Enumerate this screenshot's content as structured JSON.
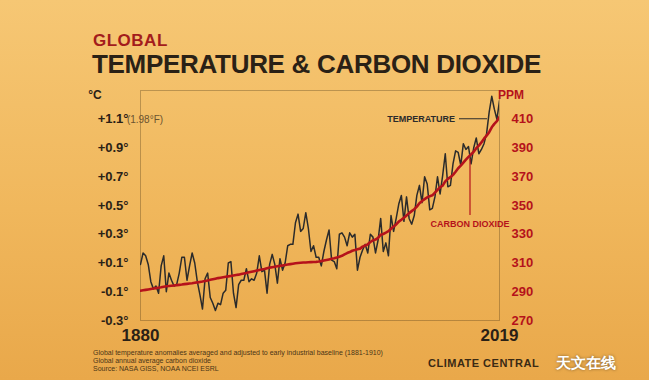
{
  "chart_data": {
    "type": "line",
    "subtitle": "GLOBAL",
    "title": "TEMPERATURE & CARBON DIOXIDE",
    "y_label": "°C",
    "y2_label": "PPM",
    "x": [
      1880,
      1881,
      1882,
      1883,
      1884,
      1885,
      1886,
      1887,
      1888,
      1889,
      1890,
      1891,
      1892,
      1893,
      1894,
      1895,
      1896,
      1897,
      1898,
      1899,
      1900,
      1901,
      1902,
      1903,
      1904,
      1905,
      1906,
      1907,
      1908,
      1909,
      1910,
      1911,
      1912,
      1913,
      1914,
      1915,
      1916,
      1917,
      1918,
      1919,
      1920,
      1921,
      1922,
      1923,
      1924,
      1925,
      1926,
      1927,
      1928,
      1929,
      1930,
      1931,
      1932,
      1933,
      1934,
      1935,
      1936,
      1937,
      1938,
      1939,
      1940,
      1941,
      1942,
      1943,
      1944,
      1945,
      1946,
      1947,
      1948,
      1949,
      1950,
      1951,
      1952,
      1953,
      1954,
      1955,
      1956,
      1957,
      1958,
      1959,
      1960,
      1961,
      1962,
      1963,
      1964,
      1965,
      1966,
      1967,
      1968,
      1969,
      1970,
      1971,
      1972,
      1973,
      1974,
      1975,
      1976,
      1977,
      1978,
      1979,
      1980,
      1981,
      1982,
      1983,
      1984,
      1985,
      1986,
      1987,
      1988,
      1989,
      1990,
      1991,
      1992,
      1993,
      1994,
      1995,
      1996,
      1997,
      1998,
      1999,
      2000,
      2001,
      2002,
      2003,
      2004,
      2005,
      2006,
      2007,
      2008,
      2009,
      2010,
      2011,
      2012,
      2013,
      2014,
      2015,
      2016,
      2017,
      2018,
      2019
    ],
    "xlim": [
      1880,
      2019
    ],
    "xticks": [
      1880,
      2019
    ],
    "ylim": [
      -0.3,
      1.3
    ],
    "yticks": [
      {
        "value": -0.3,
        "label": "-0.3°"
      },
      {
        "value": -0.1,
        "label": "-0.1°"
      },
      {
        "value": 0.1,
        "label": "+0.1°"
      },
      {
        "value": 0.3,
        "label": "+0.3°"
      },
      {
        "value": 0.5,
        "label": "+0.5°"
      },
      {
        "value": 0.7,
        "label": "+0.7°"
      },
      {
        "value": 0.9,
        "label": "+0.9°"
      },
      {
        "value": 1.1,
        "label": "+1.1°"
      }
    ],
    "y2lim": [
      270,
      430
    ],
    "y2ticks": [
      270,
      290,
      310,
      330,
      350,
      370,
      390,
      410
    ],
    "grid": false,
    "series": [
      {
        "name": "TEMPERATURE",
        "color": "#2b2b2b",
        "values": [
          0.09,
          0.17,
          0.15,
          0.09,
          -0.03,
          -0.08,
          -0.06,
          -0.11,
          0.08,
          0.15,
          -0.1,
          0.03,
          -0.02,
          -0.06,
          -0.05,
          0.03,
          0.14,
          0.14,
          -0.02,
          0.08,
          0.17,
          0.1,
          -0.03,
          -0.12,
          -0.22,
          -0.01,
          0.03,
          -0.14,
          -0.18,
          -0.23,
          -0.18,
          -0.19,
          -0.11,
          -0.09,
          0.1,
          0.11,
          -0.11,
          -0.21,
          -0.05,
          -0.02,
          -0.02,
          0.06,
          -0.03,
          -0.01,
          -0.02,
          0.03,
          0.15,
          0.04,
          0.05,
          -0.11,
          0.09,
          0.16,
          0.09,
          -0.04,
          0.13,
          0.05,
          0.1,
          0.22,
          0.23,
          0.23,
          0.38,
          0.44,
          0.32,
          0.34,
          0.45,
          0.34,
          0.18,
          0.22,
          0.14,
          0.14,
          0.08,
          0.18,
          0.26,
          0.33,
          0.12,
          0.11,
          0.06,
          0.3,
          0.31,
          0.28,
          0.22,
          0.31,
          0.28,
          0.3,
          0.05,
          0.14,
          0.19,
          0.23,
          0.17,
          0.3,
          0.28,
          0.17,
          0.26,
          0.41,
          0.18,
          0.24,
          0.15,
          0.43,
          0.32,
          0.41,
          0.51,
          0.57,
          0.39,
          0.56,
          0.41,
          0.37,
          0.43,
          0.57,
          0.64,
          0.52,
          0.7,
          0.65,
          0.47,
          0.48,
          0.56,
          0.7,
          0.58,
          0.71,
          0.86,
          0.63,
          0.64,
          0.79,
          0.88,
          0.87,
          0.78,
          0.93,
          0.89,
          0.91,
          0.79,
          0.9,
          0.97,
          0.86,
          0.89,
          0.93,
          1.0,
          1.15,
          1.26,
          1.17,
          1.1,
          1.23
        ]
      },
      {
        "name": "CARBON DIOXIDE",
        "color": "#b5121b",
        "axis": "y2",
        "values": [
          290.7,
          291.0,
          291.3,
          291.6,
          291.9,
          292.2,
          292.5,
          292.8,
          293.1,
          293.5,
          293.8,
          294.0,
          294.2,
          294.4,
          294.6,
          294.8,
          295.0,
          295.3,
          295.5,
          295.7,
          295.9,
          296.2,
          296.5,
          296.8,
          297.1,
          297.5,
          297.9,
          298.3,
          298.7,
          299.1,
          299.5,
          299.8,
          300.1,
          300.4,
          300.7,
          301.0,
          301.3,
          301.6,
          301.9,
          302.3,
          302.7,
          303.1,
          303.5,
          303.9,
          304.3,
          304.7,
          305.1,
          305.5,
          305.9,
          306.4,
          306.8,
          307.1,
          307.4,
          307.7,
          308.0,
          308.3,
          308.6,
          308.9,
          309.2,
          309.5,
          309.8,
          310.0,
          310.2,
          310.3,
          310.4,
          310.5,
          310.6,
          310.7,
          310.8,
          311.0,
          311.3,
          311.7,
          312.1,
          312.5,
          312.9,
          313.3,
          313.8,
          314.4,
          315.0,
          316.0,
          316.9,
          317.6,
          318.5,
          319.0,
          319.6,
          320.0,
          321.4,
          322.2,
          323.0,
          324.6,
          325.7,
          326.3,
          327.5,
          329.7,
          330.2,
          331.1,
          332.1,
          333.8,
          335.4,
          336.8,
          338.8,
          340.1,
          341.5,
          343.1,
          344.7,
          346.1,
          347.4,
          349.2,
          351.6,
          353.1,
          354.4,
          355.6,
          356.5,
          357.1,
          358.9,
          360.9,
          362.7,
          363.8,
          366.8,
          368.5,
          369.7,
          371.3,
          373.5,
          375.9,
          377.7,
          379.8,
          381.9,
          383.8,
          385.6,
          387.4,
          389.9,
          391.7,
          393.9,
          396.5,
          398.6,
          401.0,
          404.4,
          406.8,
          408.7,
          411.7
        ]
      }
    ],
    "annotations": {
      "top_tick_note": "(1.98°F)",
      "notes": [
        "Global temperature anomalies averaged and adjusted to early industrial baseline (1881-1910)",
        "Global annual average carbon dioxide",
        "Source: NASA GISS, NOAA NCEI ESRL"
      ],
      "brand": "CLIMATE CENTRAL",
      "watermark": "天文在线"
    }
  }
}
